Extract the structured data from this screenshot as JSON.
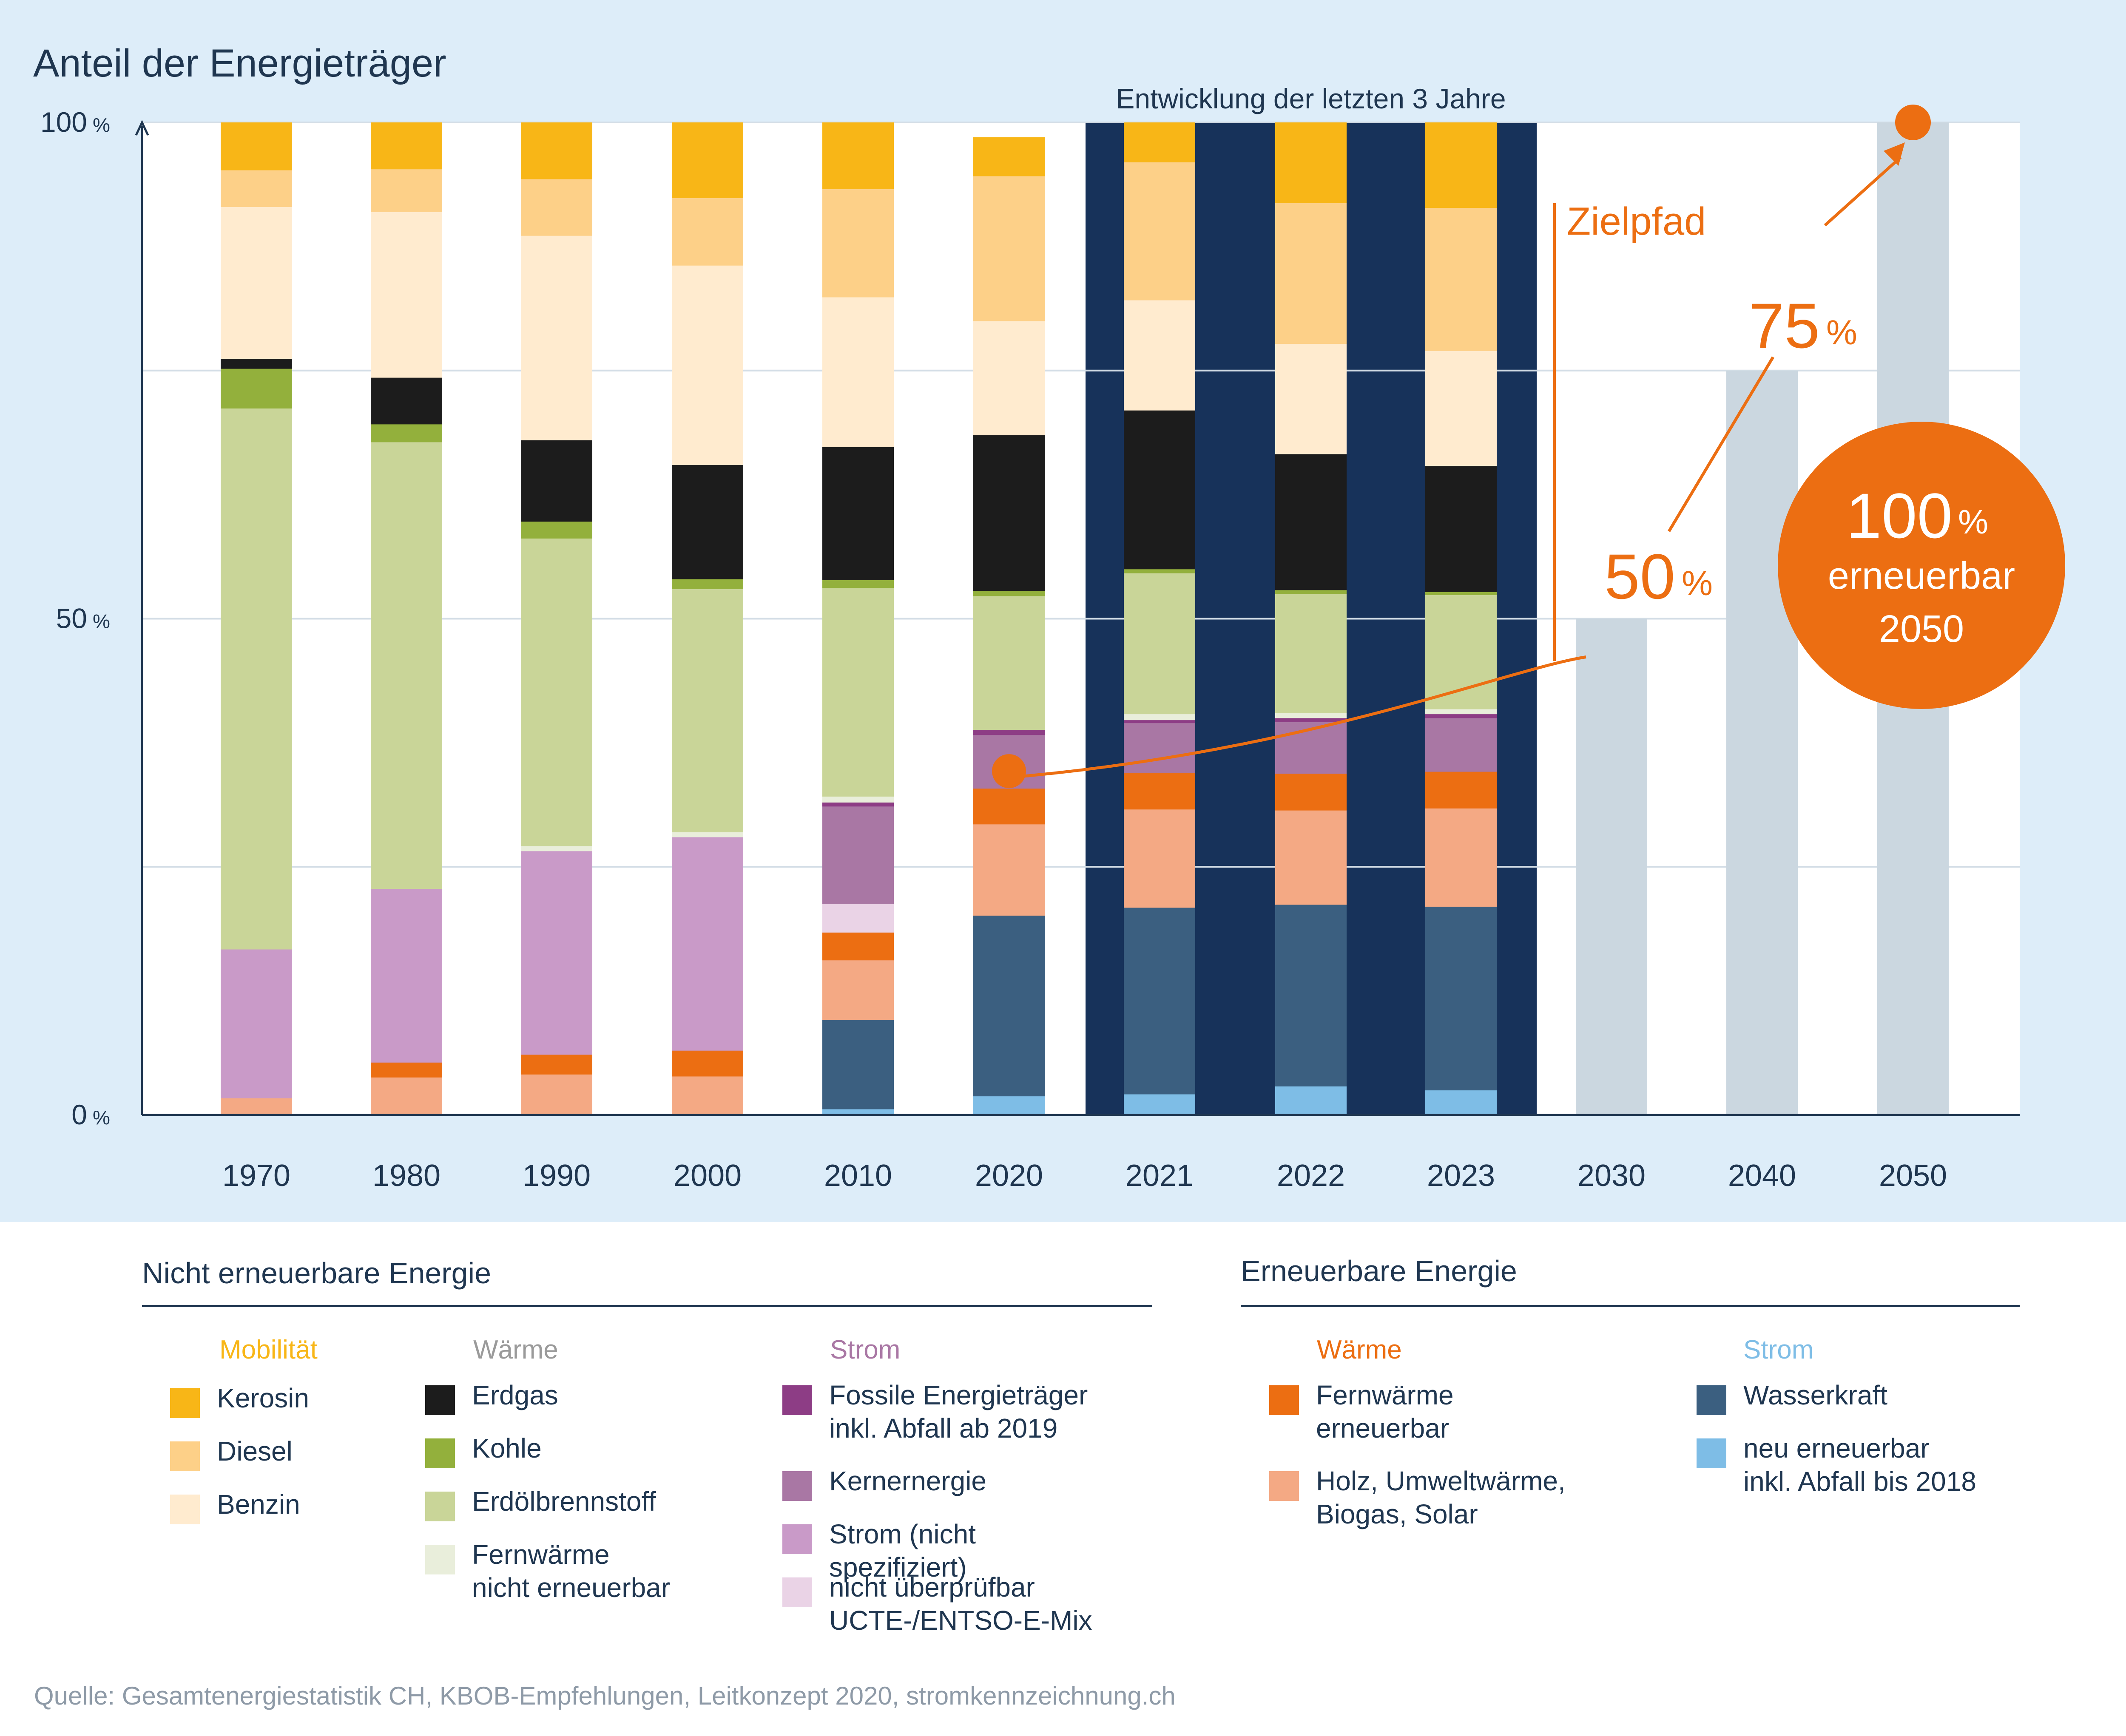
{
  "chart_data": {
    "type": "bar",
    "stacked": true,
    "title": "Anteil der Energieträger",
    "annotation_recent": "Entwicklung der letzten 3 Jahre",
    "annotation_path": "Zielpfad",
    "target_labels": [
      {
        "value": "50",
        "unit": "%"
      },
      {
        "value": "75",
        "unit": "%"
      }
    ],
    "target_circle": {
      "value": "100",
      "unit": "%",
      "line1": "erneuerbar",
      "line2": "2050"
    },
    "ylim": [
      0,
      100
    ],
    "y_ticks": [
      {
        "value": 0,
        "label": "0",
        "unit": "%"
      },
      {
        "value": 50,
        "label": "50",
        "unit": "%"
      },
      {
        "value": 100,
        "label": "100",
        "unit": "%"
      }
    ],
    "gridlines": [
      25,
      50,
      75,
      100
    ],
    "categories": [
      "1970",
      "1980",
      "1990",
      "2000",
      "2010",
      "2020",
      "2021",
      "2022",
      "2023",
      "2030",
      "2040",
      "2050"
    ],
    "highlight_categories": [
      "2021",
      "2022",
      "2023"
    ],
    "series": [
      {
        "name": "neu erneuerbar inkl. Abfall bis 2018",
        "color": "#7ebde6",
        "values": [
          0,
          0,
          0,
          0,
          0.6,
          1.9,
          2.1,
          2.9,
          2.5,
          0,
          0,
          0
        ]
      },
      {
        "name": "Wasserkraft",
        "color": "#3b5f80",
        "values": [
          0,
          0,
          0,
          0,
          9,
          18.2,
          18.8,
          18.3,
          18.5,
          0,
          0,
          0
        ]
      },
      {
        "name": "Holz, Umweltwärme, Biogas, Solar",
        "color": "#f4a984",
        "values": [
          1.7,
          3.8,
          4.1,
          3.9,
          6,
          9.2,
          9.9,
          9.5,
          9.9,
          0,
          0,
          0
        ]
      },
      {
        "name": "Fernwärme erneuerbar",
        "color": "#ec6e12",
        "values": [
          0,
          1.5,
          2,
          2.6,
          2.8,
          3.6,
          3.7,
          3.7,
          3.7,
          0,
          0,
          0
        ]
      },
      {
        "name": "nicht überprüfbar UCTE-/ENTSO-E-Mix",
        "color": "#ead3e6",
        "values": [
          0,
          0,
          0,
          0,
          2.9,
          0,
          0,
          0,
          0,
          0,
          0,
          0
        ]
      },
      {
        "name": "Strom (nicht spezifiziert)",
        "color": "#c99ac8",
        "values": [
          15,
          17.5,
          20.5,
          21.5,
          0,
          0,
          0,
          0,
          0,
          0,
          0,
          0
        ]
      },
      {
        "name": "Kernernergie",
        "color": "#a977a4",
        "values": [
          0,
          0,
          0,
          0,
          9.8,
          5.4,
          5,
          5.2,
          5.4,
          0,
          0,
          0
        ]
      },
      {
        "name": "Fossile Energieträger inkl. Abfall ab 2019",
        "color": "#8d3d85",
        "values": [
          0,
          0,
          0,
          0,
          0.4,
          0.5,
          0.3,
          0.4,
          0.4,
          0,
          0,
          0
        ]
      },
      {
        "name": "Fernwärme nicht erneuerbar",
        "color": "#e9eedb",
        "values": [
          0,
          0,
          0.5,
          0.5,
          0.6,
          0,
          0.6,
          0.5,
          0.5,
          0,
          0,
          0
        ]
      },
      {
        "name": "Erdölbrennstoff",
        "color": "#c9d598",
        "values": [
          54.5,
          45,
          31,
          24.5,
          21,
          13.5,
          14.2,
          12,
          11.5,
          0,
          0,
          0
        ]
      },
      {
        "name": "Kohle",
        "color": "#93b03c",
        "values": [
          4,
          1.8,
          1.7,
          1,
          0.8,
          0.5,
          0.4,
          0.4,
          0.3,
          0,
          0,
          0
        ]
      },
      {
        "name": "Erdgas",
        "color": "#1c1c1c",
        "values": [
          1,
          4.7,
          8.2,
          11.5,
          13.4,
          15.7,
          16,
          13.7,
          12.7,
          0,
          0,
          0
        ]
      },
      {
        "name": "Benzin",
        "color": "#ffebcf",
        "values": [
          15.3,
          16.7,
          20.6,
          20.1,
          15.1,
          11.5,
          11.1,
          11.1,
          11.6,
          0,
          0,
          0
        ]
      },
      {
        "name": "Diesel",
        "color": "#fdd088",
        "values": [
          3.7,
          4.3,
          5.7,
          6.8,
          10.9,
          14.6,
          13.9,
          14.2,
          14.4,
          0,
          0,
          0
        ]
      },
      {
        "name": "Kerosin",
        "color": "#f8b617",
        "values": [
          4.8,
          4.7,
          5.7,
          7.6,
          6.7,
          3.9,
          4,
          8.1,
          8.6,
          0,
          0,
          0
        ]
      }
    ],
    "target_path": [
      {
        "x": "2020",
        "y": 34
      },
      {
        "x": "2030",
        "y": 50
      },
      {
        "x": "2040",
        "y": 75
      },
      {
        "x": "2050",
        "y": 100
      }
    ],
    "colors": {
      "panel": "#ddedf9",
      "highlight": "#17325a",
      "target_bar": "#cbd7e0",
      "accent": "#ec6e12",
      "text": "#1f3650"
    },
    "legend_placement": "bottom"
  },
  "legend": {
    "non_renewable_title": "Nicht erneuerbare Energie",
    "renewable_title": "Erneuerbare Energie",
    "groups": {
      "mobility_nr": {
        "title": "Mobilität",
        "color": "#f8b617"
      },
      "heat_nr": {
        "title": "Wärme",
        "color": "#9a9a9a"
      },
      "power_nr": {
        "title": "Strom",
        "color": "#a977a4"
      },
      "heat_r": {
        "title": "Wärme",
        "color": "#ec6e12"
      },
      "power_r": {
        "title": "Strom",
        "color": "#7ebde6"
      }
    },
    "items": {
      "kerosin": {
        "label": "Kerosin",
        "color": "#f8b617"
      },
      "diesel": {
        "label": "Diesel",
        "color": "#fdd088"
      },
      "benzin": {
        "label": "Benzin",
        "color": "#ffebcf"
      },
      "erdgas": {
        "label": "Erdgas",
        "color": "#1c1c1c"
      },
      "kohle": {
        "label": "Kohle",
        "color": "#93b03c"
      },
      "erdoel": {
        "label": "Erdölbrennstoff",
        "color": "#c9d598"
      },
      "fw_nr": {
        "label": "Fernwärme\nnicht erneuerbar",
        "color": "#e9eedb"
      },
      "fossil": {
        "label": "Fossile Energieträger\ninkl. Abfall ab 2019",
        "color": "#8d3d85"
      },
      "kern": {
        "label": "Kernernergie",
        "color": "#a977a4"
      },
      "strom_ns": {
        "label": "Strom (nicht spezifiziert)",
        "color": "#c99ac8"
      },
      "ucte": {
        "label": "nicht überprüfbar\nUCTE-/ENTSO-E-Mix",
        "color": "#ead3e6"
      },
      "fw_r": {
        "label": "Fernwärme\nerneuerbar",
        "color": "#ec6e12"
      },
      "holz": {
        "label": "Holz, Umweltwärme,\nBiogas, Solar",
        "color": "#f4a984"
      },
      "wasser": {
        "label": "Wasserkraft",
        "color": "#3b5f80"
      },
      "neu": {
        "label": "neu erneuerbar\ninkl. Abfall bis 2018",
        "color": "#7ebde6"
      }
    }
  },
  "source_note": "Quelle: Gesamtenergiestatistik CH, KBOB-Empfehlungen, Leitkonzept 2020, stromkennzeichnung.ch"
}
